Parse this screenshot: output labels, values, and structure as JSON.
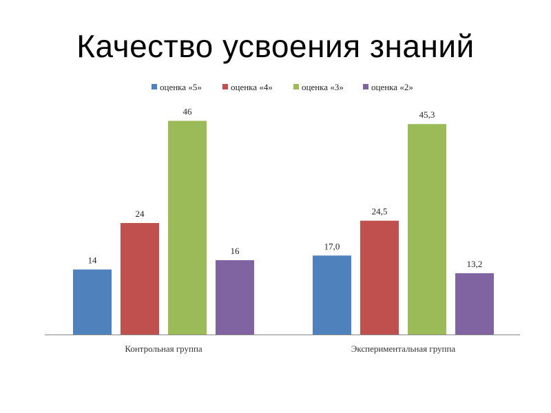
{
  "title": "Качество усвоения знаний",
  "chart_data": {
    "type": "bar",
    "title": "Качество усвоения знаний",
    "categories": [
      "Контрольная группа",
      "Экспериментальная группа"
    ],
    "series": [
      {
        "name": "оценка «5»",
        "color": "#4F81BD",
        "values": [
          14,
          17.0
        ],
        "labels": [
          "14",
          "17,0"
        ]
      },
      {
        "name": "оценка «4»",
        "color": "#C0504D",
        "values": [
          24,
          24.5
        ],
        "labels": [
          "24",
          "24,5"
        ]
      },
      {
        "name": "оценка «3»",
        "color": "#9BBB59",
        "values": [
          46,
          45.3
        ],
        "labels": [
          "46",
          "45,3"
        ]
      },
      {
        "name": "оценка «2»",
        "color": "#8064A2",
        "values": [
          16,
          13.2
        ],
        "labels": [
          "16",
          "13,2"
        ]
      }
    ],
    "ylim": [
      0,
      50
    ],
    "legend": "top",
    "grid": false
  }
}
